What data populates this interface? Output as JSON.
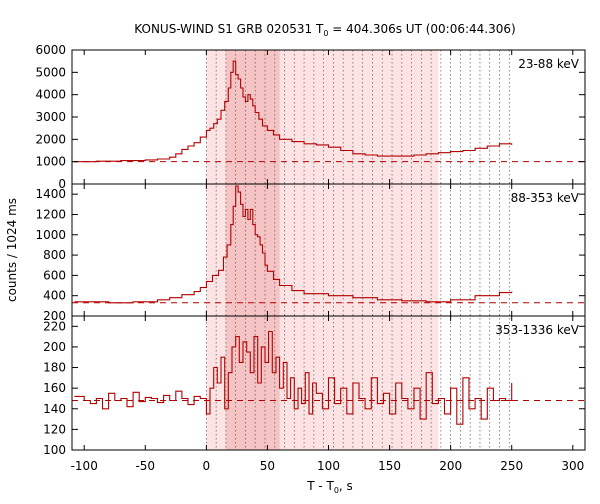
{
  "chart_data": {
    "type": "line",
    "title": "KONUS-WIND S1 GRB 020531 T",
    "title_sub": "0",
    "title_rest": " = 404.306s UT (00:06:44.306)",
    "xlabel": "T - T",
    "xlabel_sub": "0",
    "xlabel_rest": ", s",
    "ylabel": "counts / 1024 ms",
    "xlim": [
      -110,
      310
    ],
    "xticks": [
      -100,
      -50,
      0,
      50,
      100,
      150,
      200,
      250,
      300
    ],
    "grid": false,
    "colors": {
      "curve": "#b30000",
      "shade_light": "#fde3e3",
      "shade_dark": "#f6c4c4",
      "dotted": "#555555"
    },
    "shaded_intervals": [
      {
        "x0": 0,
        "x1": 190,
        "shade": "light"
      },
      {
        "x0": 16,
        "x1": 60,
        "shade": "dark"
      }
    ],
    "dotted_lines_x": [
      0,
      8,
      16,
      24,
      32,
      40,
      48,
      56,
      64,
      72,
      80,
      88,
      96,
      104,
      112,
      120,
      128,
      136,
      144,
      152,
      160,
      168,
      176,
      184,
      192,
      200,
      208,
      216,
      224,
      232,
      240,
      248
    ],
    "panels": [
      {
        "band": "23-88 keV",
        "ylim": [
          0,
          6000
        ],
        "yticks": [
          0,
          1000,
          2000,
          3000,
          4000,
          5000,
          6000
        ],
        "background": 1000,
        "series": {
          "x": [
            -108,
            -90,
            -70,
            -50,
            -40,
            -30,
            -25,
            -20,
            -15,
            -10,
            -5,
            0,
            3,
            6,
            9,
            12,
            15,
            18,
            20,
            22,
            24,
            26,
            28,
            30,
            32,
            34,
            36,
            38,
            40,
            43,
            46,
            50,
            55,
            60,
            70,
            80,
            90,
            100,
            110,
            120,
            130,
            140,
            150,
            160,
            170,
            180,
            190,
            200,
            210,
            220,
            230,
            240,
            250
          ],
          "y": [
            1000,
            1020,
            1050,
            1080,
            1120,
            1200,
            1350,
            1550,
            1700,
            1850,
            2100,
            2400,
            2500,
            2700,
            2900,
            3300,
            3700,
            4300,
            5000,
            5500,
            4900,
            4700,
            4300,
            3900,
            3700,
            4000,
            3800,
            3500,
            3200,
            2900,
            2600,
            2400,
            2200,
            2000,
            1900,
            1800,
            1750,
            1650,
            1500,
            1350,
            1300,
            1250,
            1250,
            1250,
            1300,
            1350,
            1400,
            1450,
            1500,
            1600,
            1700,
            1800,
            1750
          ]
        }
      },
      {
        "band": "88-353 keV",
        "ylim": [
          200,
          1500
        ],
        "yticks": [
          200,
          400,
          600,
          800,
          1000,
          1200,
          1400
        ],
        "background": 330,
        "series": {
          "x": [
            -108,
            -80,
            -60,
            -40,
            -30,
            -20,
            -10,
            -5,
            0,
            5,
            10,
            14,
            17,
            20,
            22,
            24,
            26,
            28,
            30,
            32,
            34,
            36,
            38,
            40,
            42,
            44,
            46,
            48,
            50,
            55,
            60,
            70,
            80,
            100,
            120,
            140,
            160,
            180,
            200,
            220,
            240,
            250
          ],
          "y": [
            340,
            330,
            340,
            360,
            380,
            410,
            440,
            480,
            540,
            600,
            650,
            780,
            900,
            1100,
            1280,
            1480,
            1420,
            1300,
            1180,
            1250,
            1150,
            1250,
            1100,
            1000,
            980,
            900,
            820,
            700,
            640,
            560,
            500,
            450,
            420,
            400,
            380,
            360,
            350,
            340,
            360,
            400,
            430,
            440
          ]
        }
      },
      {
        "band": "353-1336 keV",
        "ylim": [
          100,
          230
        ],
        "yticks": [
          100,
          120,
          140,
          160,
          180,
          200,
          220
        ],
        "background": 148,
        "series": {
          "x": [
            -108,
            -100,
            -95,
            -90,
            -85,
            -80,
            -75,
            -70,
            -65,
            -60,
            -55,
            -50,
            -45,
            -40,
            -35,
            -30,
            -25,
            -20,
            -15,
            -10,
            -5,
            0,
            3,
            6,
            9,
            12,
            15,
            18,
            21,
            24,
            27,
            30,
            33,
            36,
            39,
            42,
            45,
            48,
            51,
            54,
            57,
            60,
            63,
            66,
            69,
            72,
            75,
            78,
            81,
            84,
            87,
            90,
            95,
            100,
            105,
            110,
            115,
            120,
            125,
            130,
            135,
            140,
            145,
            150,
            155,
            160,
            165,
            170,
            175,
            180,
            185,
            190,
            195,
            200,
            205,
            210,
            215,
            220,
            225,
            230,
            235,
            240,
            245,
            250
          ],
          "y": [
            152,
            148,
            145,
            150,
            140,
            155,
            148,
            150,
            142,
            156,
            147,
            151,
            150,
            146,
            153,
            148,
            157,
            150,
            144,
            152,
            150,
            135,
            160,
            180,
            165,
            190,
            140,
            175,
            200,
            210,
            185,
            205,
            195,
            175,
            210,
            165,
            200,
            185,
            215,
            175,
            190,
            160,
            185,
            150,
            170,
            140,
            160,
            145,
            175,
            135,
            165,
            155,
            140,
            170,
            145,
            160,
            135,
            165,
            150,
            140,
            170,
            145,
            155,
            135,
            165,
            150,
            140,
            160,
            130,
            175,
            145,
            150,
            135,
            160,
            125,
            170,
            140,
            150,
            130,
            160,
            148,
            150,
            148,
            165
          ]
        }
      }
    ]
  }
}
